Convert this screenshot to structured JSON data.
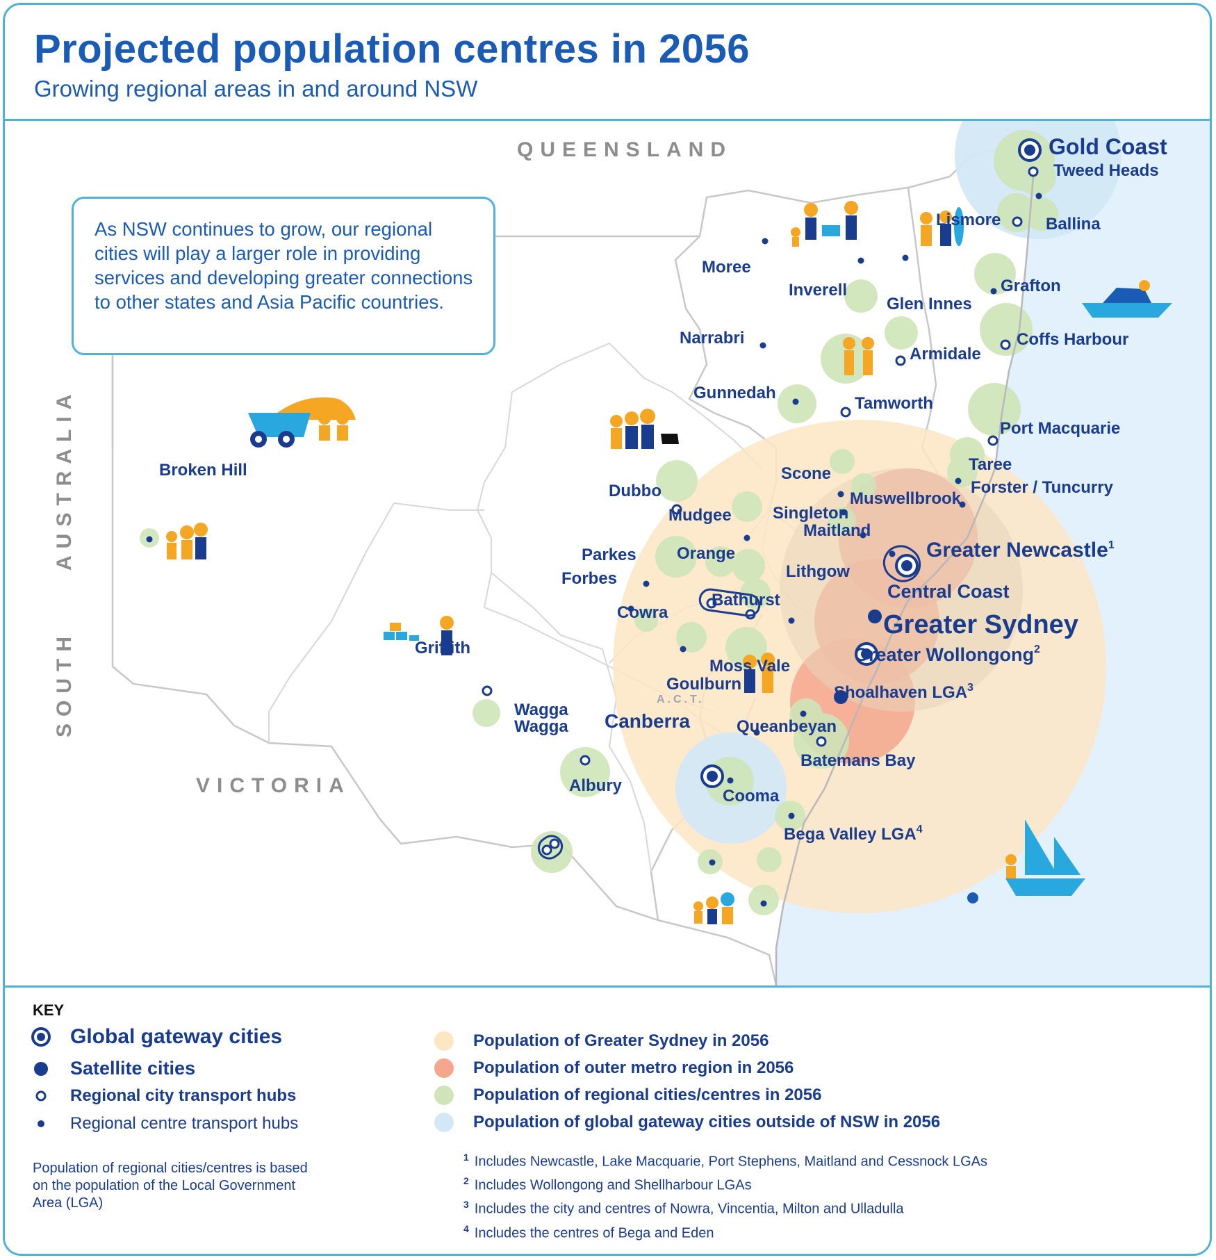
{
  "title": "Projected population centres in 2056",
  "subtitle": "Growing regional areas in and around NSW",
  "callout_text": "As NSW continues to grow, our regional cities will play a larger role in providing services and developing greater connections to other states and Asia Pacific countries.",
  "map": {
    "state_labels": {
      "queensland": "QUEENSLAND",
      "south_australia_1": "SOUTH",
      "south_australia_2": "AUSTRALIA",
      "victoria": "VICTORIA",
      "act": "A.C.T."
    },
    "places": {
      "gold_coast": "Gold Coast",
      "tweed_heads": "Tweed Heads",
      "lismore": "Lismore",
      "ballina": "Ballina",
      "moree": "Moree",
      "inverell": "Inverell",
      "glen_innes": "Glen Innes",
      "grafton": "Grafton",
      "narrabri": "Narrabri",
      "armidale": "Armidale",
      "coffs_harbour": "Coffs Harbour",
      "gunnedah": "Gunnedah",
      "tamworth": "Tamworth",
      "port_macquarie": "Port Macquarie",
      "broken_hill": "Broken Hill",
      "taree": "Taree",
      "forster": "Forster / Tuncurry",
      "dubbo": "Dubbo",
      "scone": "Scone",
      "muswellbrook": "Muswellbrook",
      "mudgee": "Mudgee",
      "singleton": "Singleton",
      "maitland": "Maitland",
      "greater_newcastle": "Greater Newcastle",
      "greater_newcastle_sup": "1",
      "parkes": "Parkes",
      "orange": "Orange",
      "lithgow": "Lithgow",
      "forbes": "Forbes",
      "bathurst": "Bathurst",
      "central_coast": "Central Coast",
      "cowra": "Cowra",
      "greater_sydney": "Greater Sydney",
      "griffith": "Griffith",
      "greater_wollongong": "Greater Wollongong",
      "greater_wollongong_sup": "2",
      "moss_vale": "Moss Vale",
      "goulburn": "Goulburn",
      "shoalhaven": "Shoalhaven LGA",
      "shoalhaven_sup": "3",
      "wagga_1": "Wagga",
      "wagga_2": "Wagga",
      "canberra": "Canberra",
      "queanbeyan": "Queanbeyan",
      "batemans_bay": "Batemans Bay",
      "albury": "Albury",
      "cooma": "Cooma",
      "bega": "Bega Valley LGA",
      "bega_sup": "4"
    }
  },
  "key": {
    "heading": "KEY",
    "symbols": [
      {
        "label": "Global gateway cities",
        "icon": "gateway-ring-icon"
      },
      {
        "label": "Satellite cities",
        "icon": "satellite-dot-icon"
      },
      {
        "label": "Regional city transport hubs",
        "icon": "hub-ring-icon"
      },
      {
        "label": "Regional centre transport hubs",
        "icon": "small-dot-icon"
      }
    ],
    "populations": [
      {
        "label": "Population of Greater Sydney in 2056",
        "color": "#fde6c4"
      },
      {
        "label": "Population of outer metro region in 2056",
        "color": "#f5a78e"
      },
      {
        "label": "Population of regional cities/centres in 2056",
        "color": "#cfe5b9"
      },
      {
        "label": "Population of global gateway cities outside of NSW in 2056",
        "color": "#d3e8f6"
      }
    ],
    "note": "Population of regional cities/centres is based on the population of the Local Government Area (LGA)"
  },
  "footnotes": [
    {
      "num": "1",
      "text": "Includes Newcastle, Lake Macquarie, Port Stephens, Maitland and Cessnock LGAs"
    },
    {
      "num": "2",
      "text": "Includes Wollongong and Shellharbour LGAs"
    },
    {
      "num": "3",
      "text": "Includes the city and centres of Nowra, Vincentia, Milton and Ulladulla"
    },
    {
      "num": "4",
      "text": "Includes the centres of Bega and Eden"
    }
  ],
  "colors": {
    "navy": "#1a3c8f",
    "title_blue": "#1a5bb5",
    "border": "#4fb3d9",
    "sea": "#e2f1fb",
    "figure_orange": "#f5a623"
  }
}
